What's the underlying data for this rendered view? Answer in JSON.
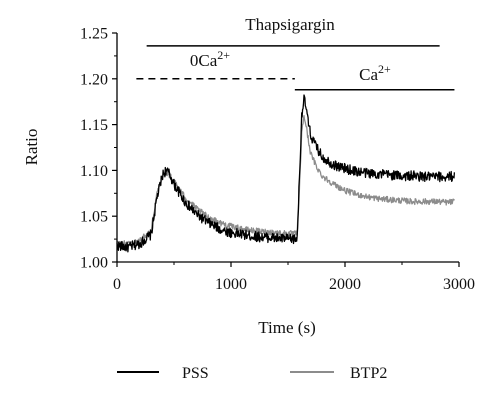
{
  "chart_data": {
    "type": "line",
    "xlabel": "Time (s)",
    "ylabel": "Ratio",
    "xlim": [
      0,
      3000
    ],
    "ylim": [
      1.0,
      1.25
    ],
    "xticks": [
      "0",
      "1000",
      "2000",
      "3000"
    ],
    "yticks": [
      "1.00",
      "1.05",
      "1.10",
      "1.15",
      "1.20",
      "1.25"
    ],
    "grid": false,
    "legend_position": "bottom",
    "annotations": [
      {
        "label": "Thapsigargin",
        "x_start": 260,
        "x_end": 2830,
        "y": 1.236,
        "style": "solid"
      },
      {
        "label": "0Ca",
        "superscript": "2+",
        "x_start": 170,
        "x_end": 1560,
        "y": 1.2,
        "style": "dashed"
      },
      {
        "label": "Ca",
        "superscript": "2+",
        "x_start": 1560,
        "x_end": 2960,
        "y": 1.188,
        "style": "solid"
      }
    ],
    "series": [
      {
        "name": "PSS",
        "color": "#000000",
        "x": [
          0,
          100,
          200,
          300,
          350,
          400,
          430,
          460,
          500,
          600,
          700,
          800,
          900,
          1000,
          1100,
          1200,
          1300,
          1400,
          1500,
          1580,
          1600,
          1620,
          1640,
          1660,
          1680,
          1700,
          1750,
          1800,
          1900,
          2000,
          2100,
          2200,
          2300,
          2400,
          2500,
          2600,
          2700,
          2800,
          2900,
          2960
        ],
        "y": [
          1.018,
          1.016,
          1.02,
          1.03,
          1.07,
          1.095,
          1.1,
          1.096,
          1.085,
          1.065,
          1.052,
          1.043,
          1.036,
          1.032,
          1.03,
          1.028,
          1.027,
          1.026,
          1.025,
          1.025,
          1.09,
          1.16,
          1.178,
          1.168,
          1.15,
          1.138,
          1.125,
          1.115,
          1.106,
          1.102,
          1.099,
          1.097,
          1.096,
          1.095,
          1.094,
          1.094,
          1.093,
          1.093,
          1.093,
          1.094
        ]
      },
      {
        "name": "BTP2",
        "color": "#8c8c8c",
        "x": [
          0,
          100,
          200,
          300,
          350,
          400,
          430,
          460,
          500,
          600,
          700,
          800,
          900,
          1000,
          1100,
          1200,
          1300,
          1400,
          1500,
          1580,
          1600,
          1620,
          1640,
          1660,
          1680,
          1700,
          1750,
          1800,
          1900,
          2000,
          2100,
          2200,
          2300,
          2400,
          2500,
          2600,
          2700,
          2800,
          2900,
          2960
        ],
        "y": [
          1.02,
          1.02,
          1.023,
          1.035,
          1.075,
          1.095,
          1.098,
          1.095,
          1.088,
          1.07,
          1.058,
          1.049,
          1.043,
          1.039,
          1.036,
          1.034,
          1.033,
          1.032,
          1.031,
          1.031,
          1.08,
          1.14,
          1.16,
          1.148,
          1.132,
          1.118,
          1.104,
          1.094,
          1.085,
          1.078,
          1.074,
          1.071,
          1.069,
          1.068,
          1.067,
          1.066,
          1.066,
          1.066,
          1.065,
          1.066
        ]
      }
    ]
  }
}
